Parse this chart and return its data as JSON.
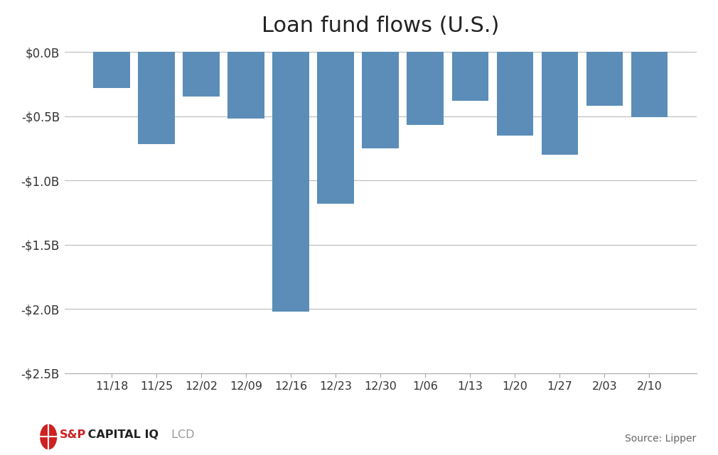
{
  "title": "Loan fund flows (U.S.)",
  "categories": [
    "11/18",
    "11/25",
    "12/02",
    "12/09",
    "12/16",
    "12/23",
    "12/30",
    "1/06",
    "1/13",
    "1/20",
    "1/27",
    "2/03",
    "2/10"
  ],
  "values": [
    -0.28,
    -0.72,
    -0.35,
    -0.52,
    -2.02,
    -1.18,
    -0.75,
    -0.57,
    -0.38,
    -0.65,
    -0.8,
    -0.42,
    -0.51
  ],
  "bar_color": "#5B8DB8",
  "ylim": [
    -2.5,
    0.05
  ],
  "yticks": [
    0.0,
    -0.5,
    -1.0,
    -1.5,
    -2.0,
    -2.5
  ],
  "ytick_labels": [
    "$0.0B",
    "-$0.5B",
    "-$1.0B",
    "-$1.5B",
    "-$2.0B",
    "-$2.5B"
  ],
  "title_fontsize": 22,
  "background_color": "#FFFFFF",
  "grid_color": "#BBBBBB",
  "source_text": "Source: Lipper",
  "bar_width": 0.82
}
